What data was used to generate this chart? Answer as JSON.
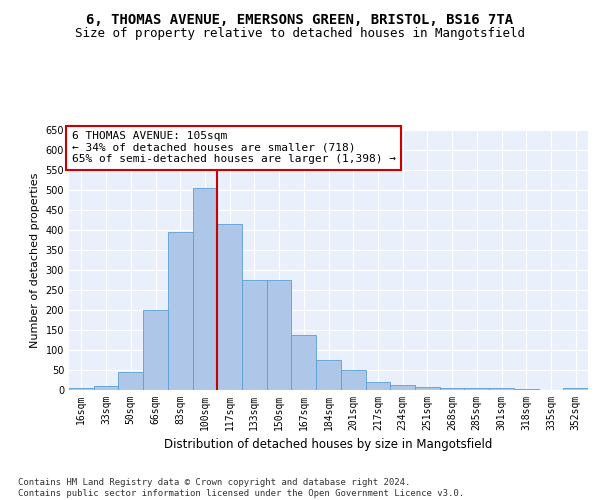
{
  "title_line1": "6, THOMAS AVENUE, EMERSONS GREEN, BRISTOL, BS16 7TA",
  "title_line2": "Size of property relative to detached houses in Mangotsfield",
  "xlabel": "Distribution of detached houses by size in Mangotsfield",
  "ylabel": "Number of detached properties",
  "categories": [
    "16sqm",
    "33sqm",
    "50sqm",
    "66sqm",
    "83sqm",
    "100sqm",
    "117sqm",
    "133sqm",
    "150sqm",
    "167sqm",
    "184sqm",
    "201sqm",
    "217sqm",
    "234sqm",
    "251sqm",
    "268sqm",
    "285sqm",
    "301sqm",
    "318sqm",
    "335sqm",
    "352sqm"
  ],
  "bar_heights": [
    5,
    10,
    45,
    200,
    395,
    505,
    415,
    275,
    275,
    138,
    75,
    50,
    20,
    12,
    7,
    5,
    5,
    5,
    3,
    0,
    5
  ],
  "bar_color": "#aec6e8",
  "bar_edge_color": "#5a9fd4",
  "vline_color": "#cc0000",
  "annotation_text": "6 THOMAS AVENUE: 105sqm\n← 34% of detached houses are smaller (718)\n65% of semi-detached houses are larger (1,398) →",
  "annotation_box_color": "#ffffff",
  "annotation_box_edge_color": "#cc0000",
  "ylim": [
    0,
    650
  ],
  "yticks": [
    0,
    50,
    100,
    150,
    200,
    250,
    300,
    350,
    400,
    450,
    500,
    550,
    600,
    650
  ],
  "background_color": "#eaf0fb",
  "grid_color": "#ffffff",
  "footer_text": "Contains HM Land Registry data © Crown copyright and database right 2024.\nContains public sector information licensed under the Open Government Licence v3.0.",
  "title_fontsize": 10,
  "subtitle_fontsize": 9,
  "tick_fontsize": 7,
  "ylabel_fontsize": 8,
  "xlabel_fontsize": 8.5,
  "annotation_fontsize": 8,
  "footer_fontsize": 6.5
}
